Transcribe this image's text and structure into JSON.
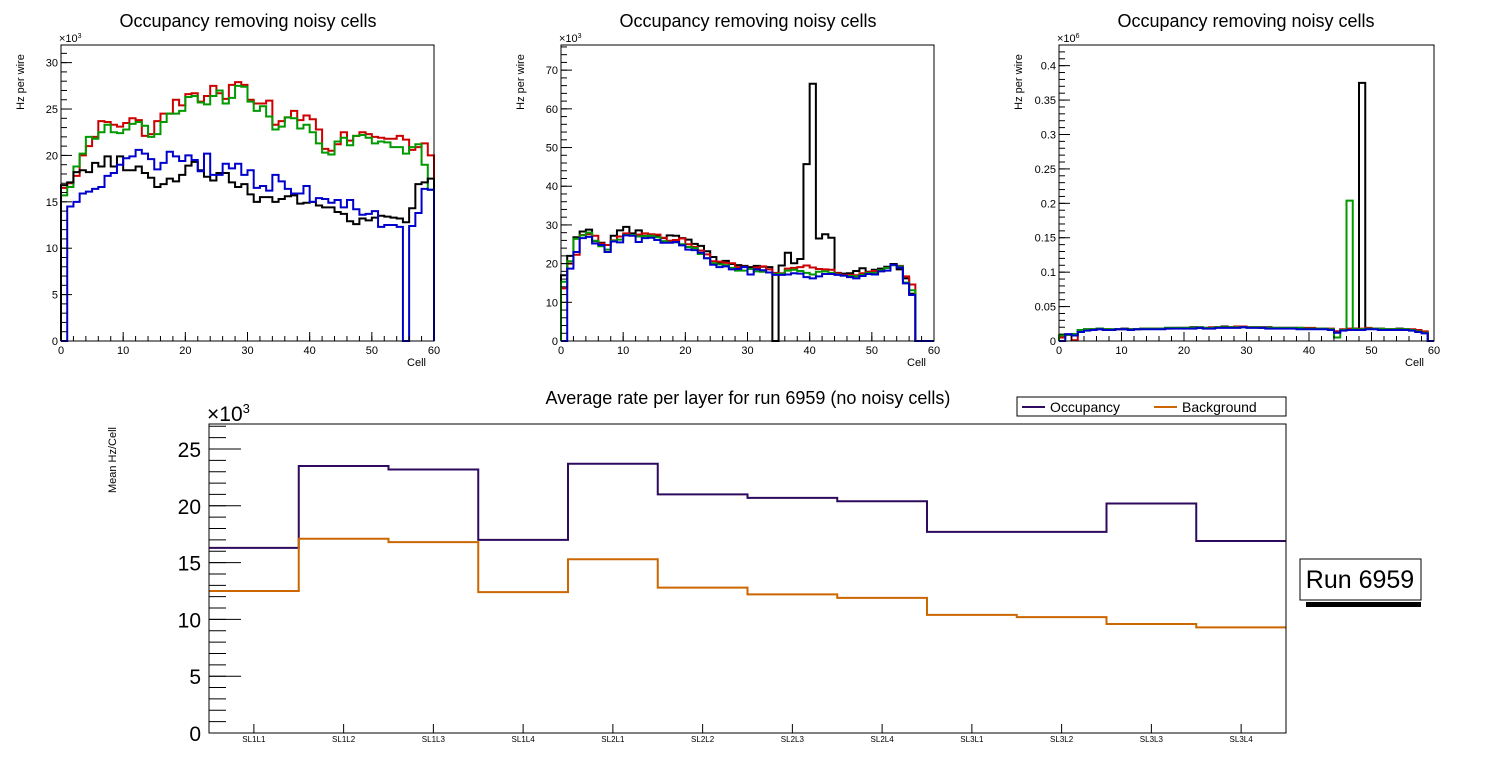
{
  "chart_data": [
    {
      "type": "line",
      "style": "step-histogram",
      "title": "Occupancy removing noisy cells",
      "xlabel": "Cell",
      "ylabel": "Hz per wire",
      "y_multiplier_label": "×10",
      "y_multiplier_exp": "3",
      "xlim": [
        0,
        60
      ],
      "ylim": [
        0,
        31.9
      ],
      "x_ticks": [
        "0",
        "10",
        "20",
        "30",
        "40",
        "50",
        "60"
      ],
      "y_ticks": [
        "0",
        "5",
        "10",
        "15",
        "20",
        "25",
        "30"
      ],
      "y_tick_values": [
        0,
        5,
        10,
        15,
        20,
        25,
        30
      ],
      "series": [
        {
          "name": "red",
          "color": "#cc0000",
          "values": [
            16.5,
            17,
            17.8,
            20,
            21,
            22,
            23.7,
            23.6,
            23.3,
            23.1,
            23.5,
            24,
            23.8,
            22.1,
            22.3,
            23.7,
            24.5,
            24.5,
            26,
            25.4,
            26.6,
            26.7,
            25.8,
            26.4,
            27.5,
            26.7,
            26.1,
            27.6,
            27.9,
            27.6,
            26,
            25.6,
            25.6,
            25.9,
            23.3,
            23.7,
            24.1,
            24.8,
            23.8,
            24.3,
            23.9,
            22.8,
            20.7,
            20.5,
            21.2,
            22.5,
            21.6,
            22.1,
            22.5,
            22.3,
            22,
            21.9,
            21.8,
            21.8,
            22.1,
            21.7,
            20.6,
            20.9,
            21.3,
            20
          ]
        },
        {
          "name": "green",
          "color": "#009900",
          "values": [
            15.7,
            16.6,
            18.8,
            20.2,
            22,
            21.8,
            22.5,
            23.3,
            22.5,
            22.4,
            22.8,
            23.4,
            23.6,
            23.2,
            22,
            22.3,
            23.6,
            24.5,
            24.5,
            24.8,
            26.3,
            26.4,
            25.7,
            25.5,
            26.4,
            27,
            25.6,
            26.2,
            27.5,
            27.4,
            25.8,
            24.8,
            25.3,
            24.2,
            22.8,
            23.1,
            24.1,
            24,
            22.9,
            23.3,
            22.5,
            21.3,
            20.3,
            20.1,
            21.5,
            21.9,
            21.1,
            22.1,
            22.2,
            21.9,
            21.3,
            21.5,
            21.4,
            20.9,
            20.9,
            20.2,
            20.9,
            21.2,
            19,
            16.3
          ]
        },
        {
          "name": "black",
          "color": "#000000",
          "values": [
            16.8,
            17.1,
            18.2,
            18.4,
            18.2,
            19.2,
            18.8,
            19.9,
            18.8,
            19.9,
            18.4,
            18.4,
            18.8,
            18.1,
            17.6,
            16.6,
            16.9,
            17.5,
            17.2,
            17.9,
            18.9,
            19.3,
            18.4,
            17.7,
            17.3,
            18.1,
            18.1,
            17.1,
            16.6,
            16.9,
            15.8,
            15,
            15.5,
            15.5,
            15,
            15.3,
            15.6,
            15.7,
            14.8,
            14.9,
            15,
            14.6,
            14.4,
            14.4,
            13.9,
            13.7,
            12.9,
            12.6,
            13.2,
            13,
            13.3,
            13.5,
            13.4,
            13.3,
            13.2,
            12.8,
            14.3,
            16.9,
            17.1,
            17.5
          ]
        },
        {
          "name": "blue",
          "color": "#0000cc",
          "values": [
            0,
            14.5,
            15,
            15.9,
            16.1,
            16.4,
            16.6,
            17.8,
            18.1,
            19,
            19.7,
            19.9,
            20.6,
            20.2,
            19.6,
            18.5,
            19.2,
            20.4,
            19.9,
            19.4,
            20,
            19.5,
            18.3,
            20.2,
            17.9,
            17.9,
            19.1,
            18.6,
            19.1,
            17.9,
            18.4,
            16.5,
            16.7,
            16.2,
            17.9,
            17.2,
            16.4,
            15.9,
            15.9,
            16.7,
            15,
            15.4,
            15.3,
            14.9,
            15.2,
            14.4,
            15.2,
            14.2,
            13.6,
            13.7,
            14,
            12.3,
            12.5,
            12.5,
            12.3,
            0,
            12.4,
            13.8,
            16.4,
            16.3
          ]
        }
      ]
    },
    {
      "type": "line",
      "style": "step-histogram",
      "title": "Occupancy removing noisy cells",
      "xlabel": "Cell",
      "ylabel": "Hz per wire",
      "y_multiplier_label": "×10",
      "y_multiplier_exp": "3",
      "xlim": [
        0,
        60
      ],
      "ylim": [
        0,
        76.5
      ],
      "x_ticks": [
        "0",
        "10",
        "20",
        "30",
        "40",
        "50",
        "60"
      ],
      "y_ticks": [
        "0",
        "10",
        "20",
        "30",
        "40",
        "50",
        "60",
        "70"
      ],
      "y_tick_values": [
        0,
        10,
        20,
        30,
        40,
        50,
        60,
        70
      ],
      "series": [
        {
          "name": "black",
          "color": "#000000",
          "values": [
            17,
            22,
            26.8,
            28.3,
            28.8,
            25.8,
            25.4,
            24.8,
            27.2,
            28.6,
            29.5,
            27.8,
            28.6,
            27.2,
            27.2,
            27.1,
            26.6,
            27.3,
            27.2,
            26.6,
            26.2,
            25.1,
            24.6,
            23.2,
            21.7,
            20.1,
            20.7,
            19.9,
            19.6,
            19.4,
            19.1,
            19.4,
            19.2,
            19.1,
            0,
            19.5,
            22.8,
            20.1,
            21.2,
            45.7,
            66.5,
            26.5,
            27.6,
            26.7,
            17.6,
            17.4,
            17.5,
            18.1,
            18.8,
            17.9,
            18.4,
            18.7,
            19.2,
            19.9,
            18.5,
            16.2,
            12.2,
            0,
            0,
            0
          ]
        },
        {
          "name": "red",
          "color": "#cc0000",
          "values": [
            13.6,
            20,
            22.3,
            27.4,
            27.6,
            27.2,
            25.2,
            24.8,
            26,
            27,
            27.8,
            27.3,
            27.5,
            27.8,
            27.6,
            27.5,
            26.7,
            25.9,
            26.1,
            26.5,
            25,
            24.3,
            23.4,
            22.4,
            20.6,
            20.5,
            20.2,
            20.1,
            19.1,
            19.2,
            18.6,
            19,
            19.3,
            18.5,
            17.6,
            17.5,
            18.7,
            18.9,
            19.1,
            19.5,
            19,
            18.6,
            18.5,
            18.4,
            17.5,
            17.1,
            17.1,
            17,
            17.5,
            17.8,
            18.1,
            18.2,
            18.9,
            19.6,
            19.4,
            16.7,
            14.6,
            0,
            0,
            0
          ]
        },
        {
          "name": "green",
          "color": "#009900",
          "values": [
            15.3,
            20.6,
            26.4,
            27.3,
            28,
            25.9,
            24.5,
            23.6,
            25.9,
            26.2,
            27.4,
            27.4,
            27,
            27.1,
            27.2,
            26.8,
            25.8,
            25.5,
            25.5,
            25,
            24.3,
            24,
            22.5,
            21.4,
            20.1,
            19.8,
            19.6,
            18.9,
            18.2,
            18.2,
            18.6,
            18,
            17.9,
            17.7,
            17.3,
            17.4,
            18.2,
            18.4,
            18.1,
            17.6,
            17.2,
            17.9,
            18,
            17.6,
            17.2,
            16.9,
            16.8,
            16.7,
            17.1,
            17.6,
            17.6,
            18.3,
            18.9,
            19.6,
            19.3,
            15.1,
            13.1,
            0,
            0,
            0
          ]
        },
        {
          "name": "blue",
          "color": "#0000cc",
          "values": [
            0,
            18.7,
            23,
            26.6,
            26.9,
            25.2,
            24.8,
            23,
            25.7,
            25.5,
            27.3,
            27.2,
            25.6,
            26.6,
            26.7,
            26.1,
            25.4,
            25.4,
            25.6,
            24.7,
            23.6,
            23.5,
            22.8,
            21.4,
            19.7,
            19.1,
            19.3,
            18.5,
            18.6,
            19.1,
            17.2,
            18.5,
            18.3,
            17.7,
            17.1,
            17.1,
            17.2,
            17.5,
            17.4,
            16.5,
            16.2,
            16.7,
            17.3,
            17.3,
            17.1,
            16.9,
            16.5,
            16.2,
            16.8,
            17.3,
            17.2,
            18,
            18.2,
            19.7,
            19,
            14.9,
            11.9,
            0,
            0,
            0
          ]
        }
      ]
    },
    {
      "type": "line",
      "style": "step-histogram",
      "title": "Occupancy removing noisy cells",
      "xlabel": "Cell",
      "ylabel": "Hz per wire",
      "y_multiplier_label": "×10",
      "y_multiplier_exp": "6",
      "xlim": [
        0,
        60
      ],
      "ylim": [
        0,
        0.43
      ],
      "x_ticks": [
        "0",
        "10",
        "20",
        "30",
        "40",
        "50",
        "60"
      ],
      "y_ticks": [
        "0",
        "0.05",
        "0.1",
        "0.15",
        "0.2",
        "0.25",
        "0.3",
        "0.35",
        "0.4"
      ],
      "y_tick_values": [
        0,
        0.05,
        0.1,
        0.15,
        0.2,
        0.25,
        0.3,
        0.35,
        0.4
      ],
      "series": [
        {
          "name": "black",
          "color": "#000000",
          "values": [
            0.006,
            0.009,
            0.01,
            0.016,
            0.017,
            0.017,
            0.018,
            0.017,
            0.017,
            0.017,
            0.018,
            0.017,
            0.017,
            0.018,
            0.018,
            0.018,
            0.018,
            0.019,
            0.019,
            0.019,
            0.019,
            0.02,
            0.019,
            0.019,
            0.019,
            0.02,
            0.021,
            0.02,
            0.021,
            0.021,
            0.02,
            0.02,
            0.02,
            0.02,
            0.019,
            0.019,
            0.019,
            0.019,
            0.019,
            0.018,
            0.018,
            0.018,
            0.018,
            0.017,
            0.014,
            0.016,
            0.017,
            0.018,
            0.375,
            0.018,
            0.018,
            0.018,
            0.017,
            0.017,
            0.018,
            0.017,
            0.016,
            0.014,
            0.012,
            0
          ]
        },
        {
          "name": "red",
          "color": "#cc0000",
          "values": [
            0.005,
            0.009,
            0.001,
            0.015,
            0.016,
            0.017,
            0.017,
            0.017,
            0.016,
            0.017,
            0.017,
            0.017,
            0.017,
            0.018,
            0.018,
            0.018,
            0.018,
            0.018,
            0.019,
            0.019,
            0.019,
            0.019,
            0.02,
            0.019,
            0.02,
            0.02,
            0.02,
            0.02,
            0.021,
            0.021,
            0.02,
            0.02,
            0.019,
            0.019,
            0.019,
            0.019,
            0.019,
            0.019,
            0.019,
            0.019,
            0.019,
            0.018,
            0.018,
            0.018,
            0.014,
            0.017,
            0.018,
            0.018,
            0.018,
            0.019,
            0.018,
            0.018,
            0.017,
            0.017,
            0.017,
            0.017,
            0.017,
            0.016,
            0.014,
            0
          ]
        },
        {
          "name": "green",
          "color": "#009900",
          "values": [
            0.008,
            0.009,
            0.01,
            0.016,
            0.017,
            0.017,
            0.018,
            0.017,
            0.017,
            0.017,
            0.017,
            0.017,
            0.017,
            0.018,
            0.018,
            0.018,
            0.018,
            0.019,
            0.019,
            0.019,
            0.019,
            0.019,
            0.02,
            0.019,
            0.019,
            0.02,
            0.02,
            0.02,
            0.02,
            0.02,
            0.02,
            0.02,
            0.019,
            0.019,
            0.019,
            0.019,
            0.019,
            0.019,
            0.019,
            0.018,
            0.018,
            0.018,
            0.018,
            0.017,
            0.005,
            0.016,
            0.204,
            0.017,
            0.017,
            0.018,
            0.018,
            0.018,
            0.017,
            0.017,
            0.017,
            0.017,
            0.016,
            0.014,
            0.012,
            0
          ]
        },
        {
          "name": "blue",
          "color": "#0000cc",
          "values": [
            0,
            0.01,
            0.008,
            0.013,
            0.015,
            0.016,
            0.017,
            0.016,
            0.016,
            0.017,
            0.017,
            0.016,
            0.017,
            0.017,
            0.017,
            0.017,
            0.017,
            0.018,
            0.018,
            0.018,
            0.018,
            0.018,
            0.019,
            0.018,
            0.018,
            0.019,
            0.019,
            0.019,
            0.019,
            0.02,
            0.019,
            0.019,
            0.019,
            0.018,
            0.018,
            0.018,
            0.018,
            0.018,
            0.017,
            0.017,
            0.017,
            0.017,
            0.017,
            0.016,
            0.012,
            0.015,
            0.016,
            0.016,
            0.016,
            0.017,
            0.017,
            0.016,
            0.016,
            0.016,
            0.016,
            0.016,
            0.015,
            0.013,
            0.011,
            0
          ]
        }
      ]
    },
    {
      "type": "line",
      "style": "step-histogram",
      "title": "Average rate per layer for run 6959 (no noisy cells)",
      "xlabel": "",
      "ylabel": "Mean Hz/Cell",
      "y_multiplier_label": "×10",
      "y_multiplier_exp": "3",
      "ylim": [
        0,
        27.2
      ],
      "categories": [
        "SL1L1",
        "SL1L2",
        "SL1L3",
        "SL1L4",
        "SL2L1",
        "SL2L2",
        "SL2L3",
        "SL2L4",
        "SL3L1",
        "SL3L2",
        "SL3L3",
        "SL3L4"
      ],
      "y_ticks": [
        "0",
        "5",
        "10",
        "15",
        "20",
        "25"
      ],
      "y_tick_values": [
        0,
        5,
        10,
        15,
        20,
        25
      ],
      "legend": {
        "placement": "top-right",
        "entries": [
          "Occupancy",
          "Background"
        ]
      },
      "annotation": "Run 6959",
      "series": [
        {
          "name": "Occupancy",
          "color": "#2e0a5e",
          "values": [
            16.3,
            23.5,
            23.2,
            17.0,
            23.7,
            21.0,
            20.7,
            20.4,
            17.7,
            17.7,
            20.2,
            16.9
          ]
        },
        {
          "name": "Background",
          "color": "#cc6600",
          "values": [
            12.5,
            17.1,
            16.8,
            12.4,
            15.3,
            12.8,
            12.2,
            11.9,
            10.4,
            10.2,
            9.6,
            9.3
          ]
        }
      ]
    }
  ]
}
